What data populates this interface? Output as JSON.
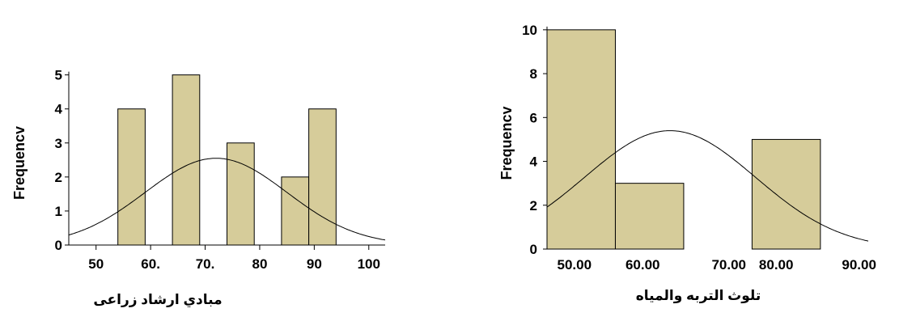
{
  "colors": {
    "bar_fill": "#d6cc9a",
    "stroke": "#000000",
    "background": "#ffffff"
  },
  "chart_data": [
    {
      "type": "bar",
      "subtype": "histogram-with-normal-curve",
      "xlabel": "مبادي ارشاد زراعى",
      "ylabel": "Frequencv",
      "xlim": [
        45,
        103
      ],
      "ylim": [
        0,
        5.3
      ],
      "x_ticks": [
        {
          "value": 50,
          "label": "50"
        },
        {
          "value": 60,
          "label": "60."
        },
        {
          "value": 70,
          "label": "70."
        },
        {
          "value": 80,
          "label": "80"
        },
        {
          "value": 90,
          "label": "90"
        },
        {
          "value": 100,
          "label": "100"
        }
      ],
      "y_ticks": [
        0,
        1,
        2,
        3,
        4,
        5
      ],
      "bins": [
        {
          "start": 54,
          "end": 59,
          "count": 4
        },
        {
          "start": 64,
          "end": 69,
          "count": 5
        },
        {
          "start": 74,
          "end": 79,
          "count": 3
        },
        {
          "start": 84,
          "end": 89,
          "count": 2
        },
        {
          "start": 89,
          "end": 94,
          "count": 4
        }
      ],
      "normal_curve": {
        "mean": 72,
        "sd": 13,
        "peak": 2.55
      },
      "grid": false,
      "legend": "none"
    },
    {
      "type": "bar",
      "subtype": "histogram-with-normal-curve",
      "xlabel": "تلوث التربه والمياه",
      "ylabel": "Frequencv",
      "xlim": [
        46,
        93
      ],
      "ylim": [
        0,
        10.4
      ],
      "x_ticks": [
        {
          "value": 50,
          "label": "50.00"
        },
        {
          "value": 60,
          "label": "60.00"
        },
        {
          "value": 70,
          "label": "70.00"
        },
        {
          "value": 80,
          "label": "80.00"
        },
        {
          "value": 90,
          "label": "90.00"
        }
      ],
      "y_ticks": [
        0,
        2,
        4,
        6,
        8,
        10
      ],
      "bins": [
        {
          "start": 46,
          "end": 56,
          "count": 10
        },
        {
          "start": 56,
          "end": 66,
          "count": 3
        },
        {
          "start": 76,
          "end": 86,
          "count": 5
        }
      ],
      "normal_curve": {
        "mean": 64,
        "sd": 12.5,
        "peak": 5.4
      },
      "grid": false,
      "legend": "none"
    }
  ]
}
